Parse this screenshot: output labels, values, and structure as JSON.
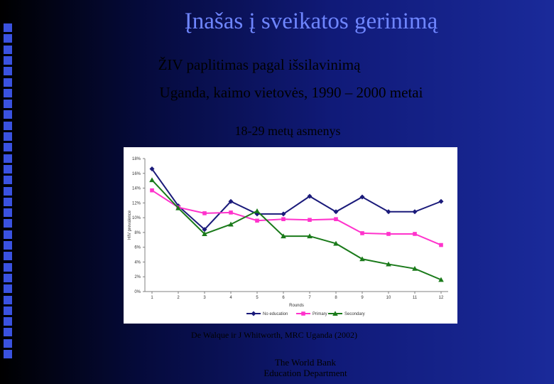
{
  "slide": {
    "title": "Įnašas į sveikatos gerinimą",
    "subtitle1": "ŽIV paplitimas pagal išsilavinimą",
    "subtitle2": "Uganda, kaimo vietovės, 1990 – 2000 metai",
    "subtitle3": "18-29 metų asmenys",
    "source": "De Walque ir J Whitworth, MRC Uganda (2002)",
    "footer_line1": "The World Bank",
    "footer_line2": "Education Department"
  },
  "colors": {
    "title": "#6f86ff",
    "no_education": "#1a1a7a",
    "primary": "#ff33cc",
    "secondary": "#1a7a1a",
    "strip": "#3a52e0"
  },
  "chart_data": {
    "type": "line",
    "x": [
      1,
      2,
      3,
      4,
      5,
      6,
      7,
      8,
      9,
      10,
      11,
      12
    ],
    "xlabel": "Rounds",
    "ylabel": "HIV prevalence",
    "ylim": [
      0,
      18
    ],
    "yticks": [
      "0%",
      "2%",
      "4%",
      "6%",
      "8%",
      "10%",
      "12%",
      "14%",
      "16%",
      "18%"
    ],
    "grid": false,
    "legend": "bottom",
    "series": [
      {
        "name": "No education",
        "marker": "diamond",
        "values": [
          16.6,
          11.6,
          8.4,
          12.2,
          10.5,
          10.5,
          12.9,
          10.8,
          12.8,
          10.8,
          10.8,
          12.2
        ]
      },
      {
        "name": "Primary",
        "marker": "square",
        "values": [
          13.7,
          11.4,
          10.6,
          10.7,
          9.6,
          9.8,
          9.7,
          9.8,
          7.9,
          7.8,
          7.8,
          6.3
        ]
      },
      {
        "name": "Secondary",
        "marker": "triangle",
        "values": [
          15.1,
          11.3,
          7.8,
          9.1,
          10.9,
          7.5,
          7.5,
          6.5,
          4.4,
          3.7,
          3.1,
          1.6
        ]
      }
    ]
  }
}
